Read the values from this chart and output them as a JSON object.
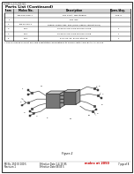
{
  "page_bg": "#ffffff",
  "border_color": "#000000",
  "header_text": "FORM 3.4 GUIDE NO.",
  "section_title": "Parts List (Continued)",
  "table_headers": [
    "Item",
    "Molex No.",
    "Description",
    "Quan./Asy."
  ],
  "table_rows": [
    [
      "",
      "190-910-0115-1",
      "Key & Nut, Two Stripper",
      "Pkg. 5"
    ],
    [
      "1",
      "",
      "Key Jack",
      ""
    ],
    [
      "2",
      "150-65-010-1",
      "Special Crimp Assy, 6&4 (7mm, Pkg pk, and Total ok)",
      ""
    ],
    [
      "3",
      "91-5",
      "91 65 50 Crack me 84 M&5 Crimp",
      "1"
    ],
    [
      "4",
      "91-4",
      "91 65 50 Crack me 84 M&5 Crimp",
      "1"
    ],
    [
      "5",
      "91-4",
      "51 5, 51, 51, 51 my Strip 75",
      "1"
    ]
  ],
  "footnote": "* The following product are size substitution descriptions to comply with ANSI B1 to A1 20.9-b",
  "figure_label": "Figure 2",
  "footer_left1": "MI No. 250 00 100 5",
  "footer_left2": "Revision 1",
  "footer_mid1": "Effective Date 1-4-15-95",
  "footer_mid2": "Effective Date 08 05 5",
  "footer_red": "molex at 2050",
  "footer_right": "7 pgs of 8",
  "text_color": "#000000",
  "red_color": "#cc0000",
  "table_line_color": "#000000",
  "diagram_gray_dark": "#444444",
  "diagram_gray_mid": "#777777",
  "diagram_gray_light": "#aaaaaa"
}
